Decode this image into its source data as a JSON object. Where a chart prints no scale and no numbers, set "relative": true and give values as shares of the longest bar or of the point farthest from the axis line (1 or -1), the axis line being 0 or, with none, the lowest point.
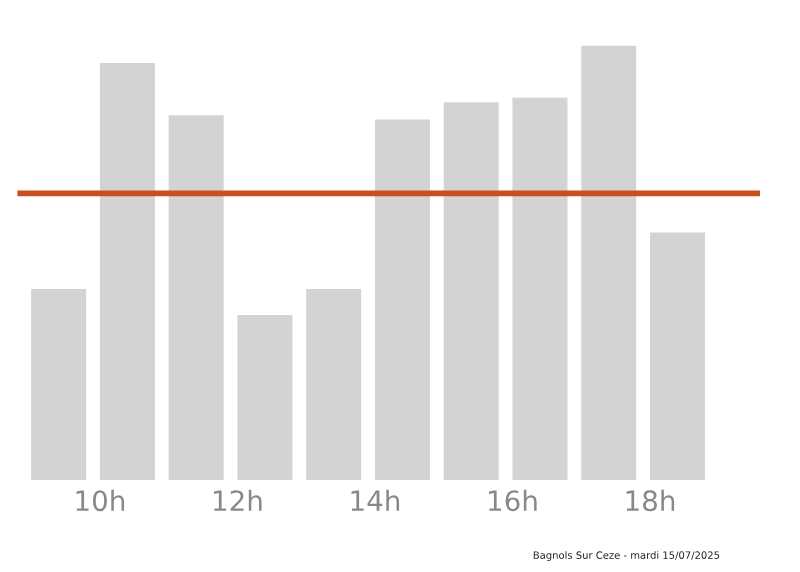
{
  "chart_data": {
    "type": "bar",
    "relative": true,
    "x": [
      9.4,
      10.4,
      11.4,
      12.4,
      13.4,
      14.4,
      15.4,
      16.4,
      17.4,
      18.4
    ],
    "values": [
      0.44,
      0.96,
      0.84,
      0.38,
      0.44,
      0.83,
      0.87,
      0.88,
      1,
      0.57
    ],
    "color": "#d3d3d3",
    "xlim": [
      8.8,
      19.6
    ],
    "xticks": [
      {
        "value": 10,
        "label": "10h"
      },
      {
        "value": 12,
        "label": "12h"
      },
      {
        "value": 14,
        "label": "14h"
      },
      {
        "value": 16,
        "label": "16h"
      },
      {
        "value": 18,
        "label": "18h"
      }
    ],
    "tick_labels": "x",
    "ref_lines": [
      {
        "axis": "y",
        "value": 0.66,
        "color": "#c8501e"
      }
    ],
    "annotations": [
      "Bagnols Sur Ceze - mardi 15/07/2025"
    ],
    "grid": false,
    "legend": false
  }
}
